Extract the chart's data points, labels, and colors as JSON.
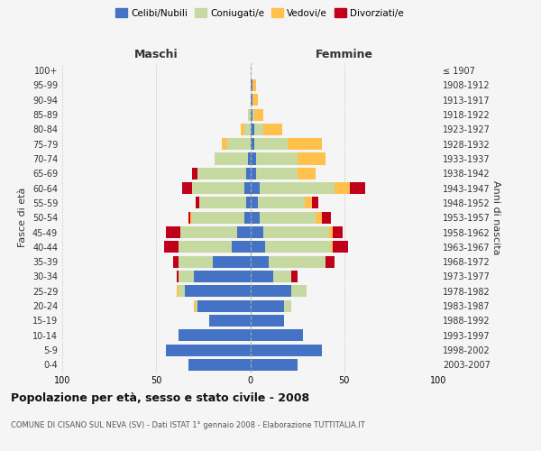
{
  "age_groups": [
    "0-4",
    "5-9",
    "10-14",
    "15-19",
    "20-24",
    "25-29",
    "30-34",
    "35-39",
    "40-44",
    "45-49",
    "50-54",
    "55-59",
    "60-64",
    "65-69",
    "70-74",
    "75-79",
    "80-84",
    "85-89",
    "90-94",
    "95-99",
    "100+"
  ],
  "birth_years": [
    "2003-2007",
    "1998-2002",
    "1993-1997",
    "1988-1992",
    "1983-1987",
    "1978-1982",
    "1973-1977",
    "1968-1972",
    "1963-1967",
    "1958-1962",
    "1953-1957",
    "1948-1952",
    "1943-1947",
    "1938-1942",
    "1933-1937",
    "1928-1932",
    "1923-1927",
    "1918-1922",
    "1913-1917",
    "1908-1912",
    "≤ 1907"
  ],
  "males": {
    "celibe": [
      33,
      45,
      38,
      22,
      28,
      35,
      30,
      20,
      10,
      7,
      3,
      2,
      3,
      2,
      1,
      0,
      0,
      0,
      0,
      0,
      0
    ],
    "coniugato": [
      0,
      0,
      0,
      0,
      1,
      3,
      8,
      18,
      28,
      30,
      28,
      25,
      28,
      26,
      18,
      12,
      3,
      1,
      0,
      0,
      0
    ],
    "vedovo": [
      0,
      0,
      0,
      0,
      1,
      1,
      0,
      0,
      0,
      0,
      1,
      0,
      0,
      0,
      0,
      3,
      2,
      0,
      0,
      0,
      0
    ],
    "divorziato": [
      0,
      0,
      0,
      0,
      0,
      0,
      1,
      3,
      8,
      8,
      1,
      2,
      5,
      3,
      0,
      0,
      0,
      0,
      0,
      0,
      0
    ]
  },
  "females": {
    "nubile": [
      25,
      38,
      28,
      18,
      18,
      22,
      12,
      10,
      8,
      7,
      5,
      4,
      5,
      3,
      3,
      2,
      2,
      1,
      1,
      1,
      0
    ],
    "coniugata": [
      0,
      0,
      0,
      0,
      4,
      8,
      10,
      30,
      35,
      35,
      30,
      25,
      40,
      22,
      22,
      18,
      5,
      1,
      0,
      0,
      0
    ],
    "vedova": [
      0,
      0,
      0,
      0,
      0,
      0,
      0,
      0,
      1,
      2,
      3,
      4,
      8,
      10,
      15,
      18,
      10,
      5,
      3,
      2,
      0
    ],
    "divorziata": [
      0,
      0,
      0,
      0,
      0,
      0,
      3,
      5,
      8,
      5,
      5,
      3,
      8,
      0,
      0,
      0,
      0,
      0,
      0,
      0,
      0
    ]
  },
  "colors": {
    "celibe": "#4472C4",
    "coniugato": "#c5d9a0",
    "vedovo": "#ffc04c",
    "divorziato": "#c0001a"
  },
  "xlim": 100,
  "title": "Popolazione per età, sesso e stato civile - 2008",
  "subtitle": "COMUNE DI CISANO SUL NEVA (SV) - Dati ISTAT 1° gennaio 2008 - Elaborazione TUTTITALIA.IT",
  "ylabel_left": "Fasce di età",
  "ylabel_right": "Anni di nascita",
  "xlabel_left": "Maschi",
  "xlabel_right": "Femmine",
  "bg_color": "#f5f5f5",
  "grid_color": "#cccccc"
}
